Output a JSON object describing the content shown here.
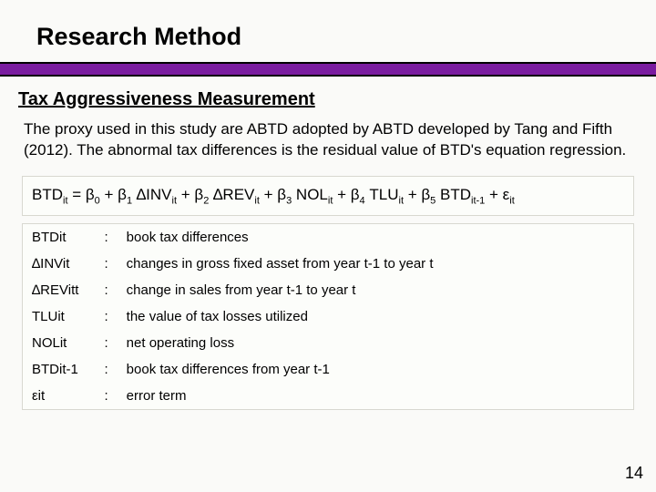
{
  "colors": {
    "accent_bar": "#7a1ca0",
    "rule_border": "#000000",
    "box_bg": "#fcfdfa",
    "box_border": "#d8d8d0",
    "page_bg": "#fafaf8",
    "text": "#000000"
  },
  "typography": {
    "title_fontsize_pt": 20,
    "subtitle_fontsize_pt": 15,
    "body_fontsize_pt": 13,
    "table_fontsize_pt": 11,
    "font_family": "Arial"
  },
  "title": "Research Method",
  "subtitle": "Tax Aggressiveness Measurement",
  "body": "The proxy used in this study are ABTD adopted by ABTD developed by Tang and Fifth (2012). The abnormal tax differences is the residual value of BTD's equation regression.",
  "equation": {
    "lhs": "BTD",
    "lhs_sub": "it",
    "terms": [
      {
        "coef": "β",
        "coef_sub": "0",
        "var": "",
        "var_sub": ""
      },
      {
        "coef": "β",
        "coef_sub": "1",
        "var": "∆INV",
        "var_sub": "it"
      },
      {
        "coef": "β",
        "coef_sub": "2",
        "var": "∆REV",
        "var_sub": "it",
        "no_coef_space": true
      },
      {
        "coef": "β",
        "coef_sub": "3",
        "var": "NOL",
        "var_sub": "it"
      },
      {
        "coef": "β",
        "coef_sub": "4",
        "var": "TLU",
        "var_sub": "it"
      },
      {
        "coef": "β",
        "coef_sub": "5",
        "var": "BTD",
        "var_sub": "it-1"
      }
    ],
    "error": {
      "sym": "ε",
      "sub": "it"
    }
  },
  "definitions": [
    {
      "symbol": "BTDit",
      "desc": "book tax differences"
    },
    {
      "symbol": "∆INVit",
      "desc": "changes in gross fixed asset from year t-1 to year t"
    },
    {
      "symbol": "∆REVitt",
      "desc": "change in sales from year t-1 to year t"
    },
    {
      "symbol": "TLUit",
      "desc": "the value of tax losses utilized"
    },
    {
      "symbol": "NOLit",
      "desc": "net operating loss"
    },
    {
      "symbol": "BTDit-1",
      "desc": "book tax differences   from year t-1"
    },
    {
      "symbol": "εit",
      "desc": "error term"
    }
  ],
  "page_number": "14"
}
